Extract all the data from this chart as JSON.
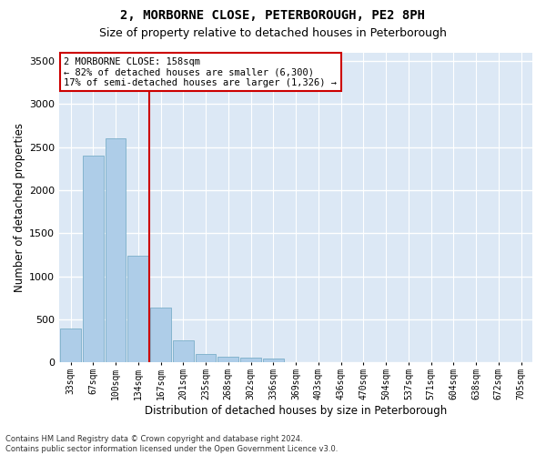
{
  "title": "2, MORBORNE CLOSE, PETERBOROUGH, PE2 8PH",
  "subtitle": "Size of property relative to detached houses in Peterborough",
  "xlabel": "Distribution of detached houses by size in Peterborough",
  "ylabel": "Number of detached properties",
  "categories": [
    "33sqm",
    "67sqm",
    "100sqm",
    "134sqm",
    "167sqm",
    "201sqm",
    "235sqm",
    "268sqm",
    "302sqm",
    "336sqm",
    "369sqm",
    "403sqm",
    "436sqm",
    "470sqm",
    "504sqm",
    "537sqm",
    "571sqm",
    "604sqm",
    "638sqm",
    "672sqm",
    "705sqm"
  ],
  "values": [
    390,
    2400,
    2600,
    1240,
    640,
    260,
    95,
    60,
    55,
    40,
    0,
    0,
    0,
    0,
    0,
    0,
    0,
    0,
    0,
    0,
    0
  ],
  "bar_color": "#aecde8",
  "bar_edge_color": "#7aaec8",
  "vline_color": "#cc0000",
  "vline_x_index": 3.5,
  "annotation_text": "2 MORBORNE CLOSE: 158sqm\n← 82% of detached houses are smaller (6,300)\n17% of semi-detached houses are larger (1,326) →",
  "annotation_box_edgecolor": "#cc0000",
  "ylim_max": 3600,
  "yticks": [
    0,
    500,
    1000,
    1500,
    2000,
    2500,
    3000,
    3500
  ],
  "plot_bg": "#dce8f5",
  "fig_bg": "#ffffff",
  "grid_color": "#ffffff",
  "footer": "Contains HM Land Registry data © Crown copyright and database right 2024.\nContains public sector information licensed under the Open Government Licence v3.0.",
  "title_fontsize": 10,
  "subtitle_fontsize": 9,
  "ylabel_fontsize": 8.5,
  "xlabel_fontsize": 8.5,
  "annot_fontsize": 7.5,
  "tick_fontsize": 7,
  "footer_fontsize": 6
}
